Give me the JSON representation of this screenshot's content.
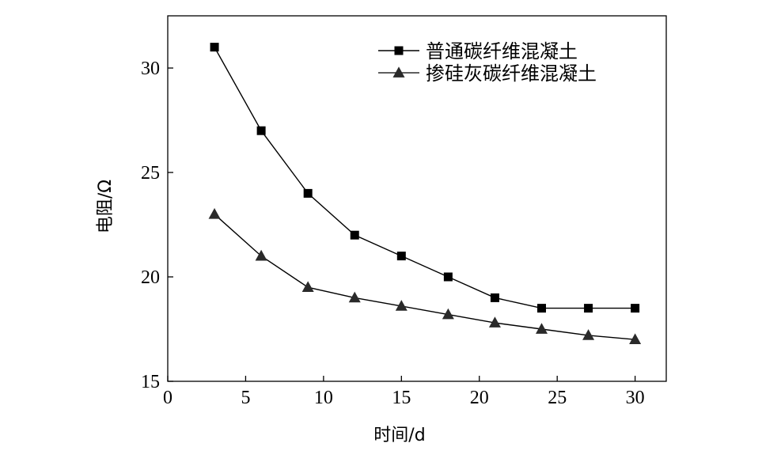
{
  "chart_data": {
    "type": "line",
    "title": "",
    "xlabel": "时间/d",
    "ylabel": "电阻/Ω",
    "xlim": [
      0,
      32
    ],
    "ylim": [
      15,
      32.5
    ],
    "x_ticks": [
      0,
      5,
      10,
      15,
      20,
      25,
      30
    ],
    "y_ticks": [
      15,
      20,
      25,
      30
    ],
    "grid": false,
    "legend_position": "top-right",
    "series": [
      {
        "name": "普通碳纤维混凝土",
        "marker": "square",
        "color": "#000000",
        "x": [
          3,
          6,
          9,
          12,
          15,
          18,
          21,
          24,
          27,
          30
        ],
        "y": [
          31,
          27,
          24,
          22,
          21,
          20,
          19,
          18.5,
          18.5,
          18.5
        ]
      },
      {
        "name": "掺硅灰碳纤维混凝土",
        "marker": "triangle",
        "color": "#2a2a2a",
        "x": [
          3,
          6,
          9,
          12,
          15,
          18,
          21,
          24,
          27,
          30
        ],
        "y": [
          23,
          21,
          19.5,
          19,
          18.6,
          18.2,
          17.8,
          17.5,
          17.2,
          17
        ]
      }
    ]
  }
}
